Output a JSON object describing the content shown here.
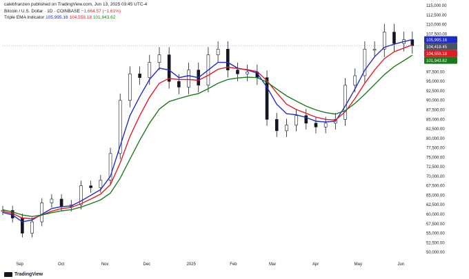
{
  "header": {
    "publisher": "calebfranzen published on TradingView.com, Jun 13, 2025 03:45 UTC-4",
    "symbol": "Bitcoin / U.S. Dollar · 1D · COINBASE",
    "change": "−1,664.57 (−1.61%)",
    "indicator_name": "Triple EMA Indicator",
    "indicator_values": [
      "105,995.16",
      "104,558.18",
      "101,943.62"
    ]
  },
  "branding": {
    "logo_text": "TradingView"
  },
  "colors": {
    "ema_fast": "#1f2bc9",
    "ema_mid": "#e01b24",
    "ema_slow": "#1a7a1a",
    "candle": "#131722",
    "last_price_badge": "#4a5260"
  },
  "chart_data": {
    "type": "line",
    "title": "Bitcoin / U.S. Dollar · 1D · COINBASE",
    "xlabel": "",
    "ylabel": "",
    "ylim": [
      48750,
      115000
    ],
    "y_ticks": [
      "115,000.00",
      "112,500.00",
      "110,000.00",
      "107,500.00",
      "105,000.00",
      "102,500.00",
      "100,000.00",
      "97,500.00",
      "95,000.00",
      "92,500.00",
      "90,000.00",
      "87,500.00",
      "85,000.00",
      "82,500.00",
      "80,000.00",
      "77,500.00",
      "75,000.00",
      "72,500.00",
      "70,000.00",
      "67,500.00",
      "65,000.00",
      "62,500.00",
      "60,000.00",
      "57,500.00",
      "55,000.00",
      "52,500.00",
      "50,000.00"
    ],
    "x_ticks": [
      "Sep",
      "Oct",
      "Nov",
      "Dec",
      "2025",
      "Feb",
      "Mar",
      "Apr",
      "May",
      "Jun"
    ],
    "dates": [
      "2024-08-24",
      "2024-08-31",
      "2024-09-07",
      "2024-09-14",
      "2024-09-21",
      "2024-09-28",
      "2024-10-05",
      "2024-10-12",
      "2024-10-19",
      "2024-10-26",
      "2024-11-02",
      "2024-11-09",
      "2024-11-16",
      "2024-11-23",
      "2024-11-30",
      "2024-12-07",
      "2024-12-14",
      "2024-12-21",
      "2024-12-28",
      "2025-01-04",
      "2025-01-11",
      "2025-01-18",
      "2025-01-25",
      "2025-02-01",
      "2025-02-08",
      "2025-02-15",
      "2025-02-22",
      "2025-03-01",
      "2025-03-08",
      "2025-03-15",
      "2025-03-22",
      "2025-03-29",
      "2025-04-05",
      "2025-04-12",
      "2025-04-19",
      "2025-04-26",
      "2025-05-03",
      "2025-05-10",
      "2025-05-17",
      "2025-05-24",
      "2025-05-31",
      "2025-06-07",
      "2025-06-13"
    ],
    "series": [
      {
        "name": "Bitcoin / U.S. Dollar",
        "values": [
          61000,
          59000,
          55000,
          58000,
          63000,
          64000,
          62000,
          62500,
          67500,
          67000,
          69000,
          76000,
          90000,
          97000,
          96000,
          100000,
          102000,
          95000,
          93500,
          98000,
          94000,
          102000,
          103500,
          98000,
          97000,
          97500,
          96000,
          85000,
          82000,
          83500,
          86000,
          84000,
          83000,
          84000,
          85000,
          94000,
          96500,
          103500,
          103500,
          108000,
          105000,
          106000,
          104400
        ]
      },
      {
        "name": "105,995.16",
        "values": [
          60500,
          59800,
          58000,
          58500,
          60000,
          61500,
          62000,
          62200,
          63500,
          65000,
          66500,
          70000,
          78000,
          86000,
          91000,
          95500,
          98500,
          98000,
          96000,
          96500,
          96000,
          98000,
          100000,
          100000,
          98500,
          98000,
          97200,
          93500,
          89000,
          86500,
          86200,
          85500,
          84500,
          84300,
          84500,
          88500,
          93000,
          98000,
          101500,
          104000,
          104800,
          105500,
          106000
        ]
      },
      {
        "name": "104,558.18",
        "values": [
          60800,
          60200,
          59000,
          58800,
          59800,
          60800,
          61500,
          61800,
          62800,
          64000,
          65300,
          67800,
          73500,
          80500,
          86000,
          90800,
          94500,
          95800,
          95500,
          95500,
          95300,
          96600,
          98200,
          98800,
          98400,
          98100,
          97600,
          95200,
          92000,
          89000,
          87600,
          86600,
          85600,
          85000,
          84800,
          87000,
          90500,
          94500,
          98000,
          101000,
          102800,
          103800,
          104600
        ]
      },
      {
        "name": "101,943.62",
        "values": [
          61200,
          60600,
          59800,
          59400,
          59800,
          60400,
          60900,
          61200,
          61900,
          62800,
          63800,
          65600,
          69500,
          74500,
          79500,
          84000,
          87700,
          89700,
          90500,
          91200,
          91800,
          93100,
          94500,
          95500,
          95900,
          96100,
          96000,
          94800,
          93000,
          91200,
          89800,
          88500,
          87500,
          86800,
          86400,
          87300,
          89200,
          91600,
          94200,
          96800,
          98900,
          100500,
          101900
        ]
      }
    ],
    "last_price_label": "104,418.45",
    "grid": false,
    "legend": "top-left"
  }
}
